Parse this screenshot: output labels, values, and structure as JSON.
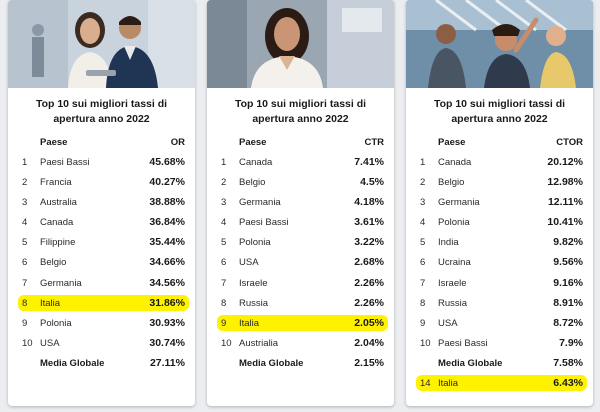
{
  "palette": {
    "highlight": "#fff200",
    "background": "#ebedf0",
    "card": "#ffffff"
  },
  "cards": [
    {
      "title": "Top 10 sui migliori tassi di apertura anno 2022",
      "col_country": "Paese",
      "col_metric": "OR",
      "rows": [
        {
          "rank": "1",
          "country": "Paesi Bassi",
          "value": "45.68%"
        },
        {
          "rank": "2",
          "country": "Francia",
          "value": "40.27%"
        },
        {
          "rank": "3",
          "country": "Australia",
          "value": "38.88%"
        },
        {
          "rank": "4",
          "country": "Canada",
          "value": "36.84%"
        },
        {
          "rank": "5",
          "country": "Filippine",
          "value": "35.44%"
        },
        {
          "rank": "6",
          "country": "Belgio",
          "value": "34.66%"
        },
        {
          "rank": "7",
          "country": "Germania",
          "value": "34.56%"
        },
        {
          "rank": "8",
          "country": "Italia",
          "value": "31.86%"
        },
        {
          "rank": "9",
          "country": "Polonia",
          "value": "30.93%"
        },
        {
          "rank": "10",
          "country": "USA",
          "value": "30.74%"
        }
      ],
      "avg_label": "Media Globale",
      "avg_value": "27.11%"
    },
    {
      "title": "Top 10 sui migliori tassi di apertura anno 2022",
      "col_country": "Paese",
      "col_metric": "CTR",
      "rows": [
        {
          "rank": "1",
          "country": "Canada",
          "value": "7.41%"
        },
        {
          "rank": "2",
          "country": "Belgio",
          "value": "4.5%"
        },
        {
          "rank": "3",
          "country": "Germania",
          "value": "4.18%"
        },
        {
          "rank": "4",
          "country": "Paesi Bassi",
          "value": "3.61%"
        },
        {
          "rank": "5",
          "country": "Polonia",
          "value": "3.22%"
        },
        {
          "rank": "6",
          "country": "USA",
          "value": "2.68%"
        },
        {
          "rank": "7",
          "country": "Israele",
          "value": "2.26%"
        },
        {
          "rank": "8",
          "country": "Russia",
          "value": "2.26%"
        },
        {
          "rank": "9",
          "country": "Italia",
          "value": "2.05%"
        },
        {
          "rank": "10",
          "country": "Austrialia",
          "value": "2.04%"
        }
      ],
      "avg_label": "Media Globale",
      "avg_value": "2.15%"
    },
    {
      "title": "Top 10 sui migliori tassi di apertura anno 2022",
      "col_country": "Paese",
      "col_metric": "CTOR",
      "rows": [
        {
          "rank": "1",
          "country": "Canada",
          "value": "20.12%"
        },
        {
          "rank": "2",
          "country": "Belgio",
          "value": "12.98%"
        },
        {
          "rank": "3",
          "country": "Germania",
          "value": "12.11%"
        },
        {
          "rank": "4",
          "country": "Polonia",
          "value": "10.41%"
        },
        {
          "rank": "5",
          "country": "India",
          "value": "9.82%"
        },
        {
          "rank": "6",
          "country": "Ucraina",
          "value": "9.56%"
        },
        {
          "rank": "7",
          "country": "Israele",
          "value": "9.16%"
        },
        {
          "rank": "8",
          "country": "Russia",
          "value": "8.91%"
        },
        {
          "rank": "9",
          "country": "USA",
          "value": "8.72%"
        },
        {
          "rank": "10",
          "country": "Paesi Bassi",
          "value": "7.9%"
        }
      ],
      "avg_label": "Media Globale",
      "avg_value": "7.58%",
      "extra_row": {
        "rank": "14",
        "country": "Italia",
        "value": "6.43%"
      }
    }
  ]
}
